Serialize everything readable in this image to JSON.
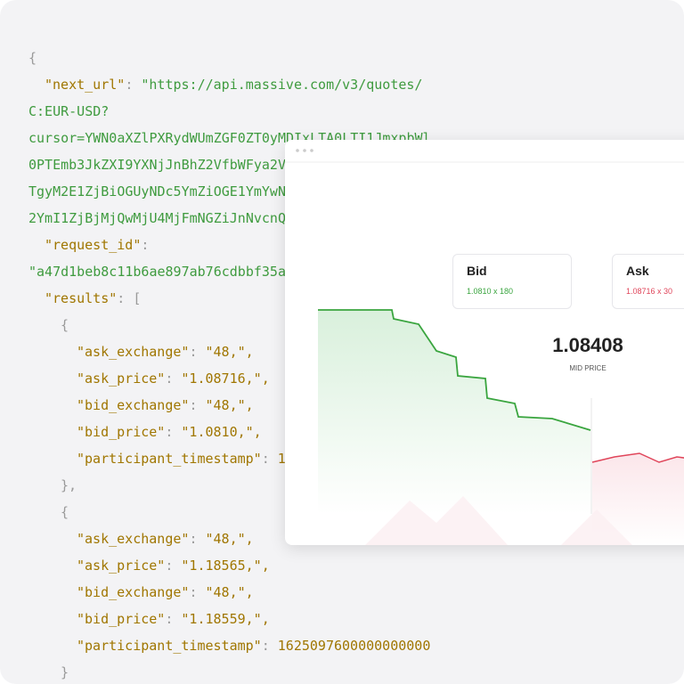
{
  "code": {
    "lines": [
      [
        "{"
      ],
      [
        "\"next_url\"",
        ": ",
        "\"https://api.massive.com/v3/quotes/"
      ],
      [
        "C:EUR-USD?"
      ],
      [
        "cursor=YWN0aXZlPXRydWUmZGF0ZT0yMDIxLTA0LTI1JmxpbWl"
      ],
      [
        "0PTEmb3JkZXI9YXNjJnBhZ2VfbWFya2V"
      ],
      [
        "TgyM2E1ZjBiOGUyNDc5YmZiOGE1YmYwN"
      ],
      [
        "2YmI1ZjBjMjQwMjU4MjFmNGZiJnNvcnQ"
      ],
      [
        "\"request_id\"",
        ":"
      ],
      [
        "\"a47d1beb8c11b6ae897ab76cdbbf35a"
      ],
      [
        "\"results\"",
        ": ",
        "["
      ],
      [
        "{"
      ],
      [
        "\"ask_exchange\"",
        ": ",
        "\"48,\","
      ],
      [
        "\"ask_price\"",
        ": ",
        "\"1.08716,\","
      ],
      [
        "\"bid_exchange\"",
        ": ",
        "\"48,\","
      ],
      [
        "\"bid_price\"",
        ": ",
        "\"1.0810,\","
      ],
      [
        "\"participant_timestamp\"",
        ": ",
        "1"
      ],
      [
        "},"
      ],
      [
        "{"
      ],
      [
        "\"ask_exchange\"",
        ": ",
        "\"48,\","
      ],
      [
        "\"ask_price\"",
        ": ",
        "\"1.18565,\","
      ],
      [
        "\"bid_exchange\"",
        ": ",
        "\"48,\","
      ],
      [
        "\"bid_price\"",
        ": ",
        "\"1.18559,\","
      ],
      [
        "\"participant_timestamp\"",
        ": ",
        "1625097600000000000"
      ],
      [
        "}"
      ]
    ]
  },
  "widget": {
    "bid": {
      "label": "Bid",
      "value": "1.0810 x 180"
    },
    "ask": {
      "label": "Ask",
      "value": "1.08716 x 30"
    },
    "mid": {
      "value": "1.08408",
      "label": "MID PRICE"
    }
  }
}
